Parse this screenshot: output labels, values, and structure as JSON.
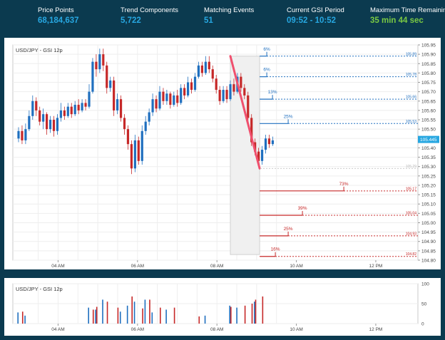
{
  "header": {
    "stats": [
      {
        "label": "Price Points",
        "value": "68,184,637"
      },
      {
        "label": "Trend Components",
        "value": "5,722"
      },
      {
        "label": "Matching Events",
        "value": "51"
      },
      {
        "label": "Current GSI Period",
        "value": "09:52 - 10:52"
      },
      {
        "label": "Maximum Time Remaining",
        "value": "35 min 44 sec"
      }
    ]
  },
  "colors": {
    "up": "#1f6fbf",
    "down": "#c62828",
    "highlight": "#f0506e",
    "accent": "#27a7e1",
    "remaining": "#7ac943"
  },
  "chart_data": [
    {
      "type": "candlestick",
      "title": "USD/JPY - GSI 12p",
      "x_ticks": [
        "04 AM",
        "06 AM",
        "08 AM",
        "10 AM",
        "12 PM"
      ],
      "ylim": [
        104.8,
        105.95
      ],
      "y_ticks": [
        "104.80",
        "104.85",
        "104.90",
        "104.95",
        "105.00",
        "105.05",
        "105.10",
        "105.15",
        "105.20",
        "105.25",
        "105.30",
        "105.35",
        "105.40",
        "105.45",
        "105.50",
        "105.55",
        "105.60",
        "105.65",
        "105.70",
        "105.75",
        "105.80",
        "105.85",
        "105.90",
        "105.95"
      ],
      "last_price": "105.445",
      "current_line": "105.29",
      "candles": [
        {
          "o": 105.45,
          "c": 105.49,
          "h": 105.51,
          "l": 105.43
        },
        {
          "o": 105.49,
          "c": 105.44,
          "h": 105.52,
          "l": 105.42
        },
        {
          "o": 105.44,
          "c": 105.5,
          "h": 105.53,
          "l": 105.42
        },
        {
          "o": 105.5,
          "c": 105.57,
          "h": 105.6,
          "l": 105.49
        },
        {
          "o": 105.57,
          "c": 105.65,
          "h": 105.68,
          "l": 105.55
        },
        {
          "o": 105.65,
          "c": 105.6,
          "h": 105.67,
          "l": 105.57
        },
        {
          "o": 105.6,
          "c": 105.54,
          "h": 105.62,
          "l": 105.52
        },
        {
          "o": 105.54,
          "c": 105.58,
          "h": 105.61,
          "l": 105.5
        },
        {
          "o": 105.58,
          "c": 105.5,
          "h": 105.59,
          "l": 105.47
        },
        {
          "o": 105.5,
          "c": 105.55,
          "h": 105.57,
          "l": 105.48
        },
        {
          "o": 105.55,
          "c": 105.49,
          "h": 105.57,
          "l": 105.46
        },
        {
          "o": 105.49,
          "c": 105.56,
          "h": 105.58,
          "l": 105.47
        },
        {
          "o": 105.56,
          "c": 105.6,
          "h": 105.64,
          "l": 105.54
        },
        {
          "o": 105.6,
          "c": 105.57,
          "h": 105.62,
          "l": 105.55
        },
        {
          "o": 105.57,
          "c": 105.62,
          "h": 105.64,
          "l": 105.56
        },
        {
          "o": 105.62,
          "c": 105.58,
          "h": 105.64,
          "l": 105.56
        },
        {
          "o": 105.58,
          "c": 105.63,
          "h": 105.65,
          "l": 105.57
        },
        {
          "o": 105.63,
          "c": 105.6,
          "h": 105.66,
          "l": 105.58
        },
        {
          "o": 105.6,
          "c": 105.64,
          "h": 105.66,
          "l": 105.59
        },
        {
          "o": 105.64,
          "c": 105.62,
          "h": 105.66,
          "l": 105.6
        },
        {
          "o": 105.62,
          "c": 105.7,
          "h": 105.74,
          "l": 105.61
        },
        {
          "o": 105.7,
          "c": 105.86,
          "h": 105.88,
          "l": 105.69
        },
        {
          "o": 105.86,
          "c": 105.82,
          "h": 105.9,
          "l": 105.78
        },
        {
          "o": 105.82,
          "c": 105.9,
          "h": 105.93,
          "l": 105.8
        },
        {
          "o": 105.9,
          "c": 105.84,
          "h": 105.93,
          "l": 105.81
        },
        {
          "o": 105.84,
          "c": 105.72,
          "h": 105.86,
          "l": 105.69
        },
        {
          "o": 105.72,
          "c": 105.76,
          "h": 105.78,
          "l": 105.7
        },
        {
          "o": 105.76,
          "c": 105.6,
          "h": 105.78,
          "l": 105.57
        },
        {
          "o": 105.6,
          "c": 105.66,
          "h": 105.69,
          "l": 105.58
        },
        {
          "o": 105.66,
          "c": 105.56,
          "h": 105.68,
          "l": 105.54
        },
        {
          "o": 105.56,
          "c": 105.5,
          "h": 105.58,
          "l": 105.47
        },
        {
          "o": 105.5,
          "c": 105.42,
          "h": 105.52,
          "l": 105.39
        },
        {
          "o": 105.42,
          "c": 105.29,
          "h": 105.44,
          "l": 105.26
        },
        {
          "o": 105.29,
          "c": 105.44,
          "h": 105.47,
          "l": 105.27
        },
        {
          "o": 105.44,
          "c": 105.33,
          "h": 105.46,
          "l": 105.31
        },
        {
          "o": 105.33,
          "c": 105.49,
          "h": 105.52,
          "l": 105.31
        },
        {
          "o": 105.49,
          "c": 105.54,
          "h": 105.57,
          "l": 105.47
        },
        {
          "o": 105.54,
          "c": 105.59,
          "h": 105.61,
          "l": 105.52
        },
        {
          "o": 105.59,
          "c": 105.66,
          "h": 105.69,
          "l": 105.57
        },
        {
          "o": 105.66,
          "c": 105.61,
          "h": 105.68,
          "l": 105.59
        },
        {
          "o": 105.61,
          "c": 105.7,
          "h": 105.73,
          "l": 105.6
        },
        {
          "o": 105.7,
          "c": 105.65,
          "h": 105.72,
          "l": 105.63
        },
        {
          "o": 105.65,
          "c": 105.69,
          "h": 105.71,
          "l": 105.63
        },
        {
          "o": 105.69,
          "c": 105.63,
          "h": 105.7,
          "l": 105.61
        },
        {
          "o": 105.63,
          "c": 105.68,
          "h": 105.7,
          "l": 105.62
        },
        {
          "o": 105.68,
          "c": 105.64,
          "h": 105.71,
          "l": 105.62
        },
        {
          "o": 105.64,
          "c": 105.72,
          "h": 105.74,
          "l": 105.63
        },
        {
          "o": 105.72,
          "c": 105.68,
          "h": 105.74,
          "l": 105.66
        },
        {
          "o": 105.68,
          "c": 105.75,
          "h": 105.78,
          "l": 105.67
        },
        {
          "o": 105.75,
          "c": 105.71,
          "h": 105.77,
          "l": 105.69
        },
        {
          "o": 105.71,
          "c": 105.78,
          "h": 105.8,
          "l": 105.7
        },
        {
          "o": 105.78,
          "c": 105.84,
          "h": 105.86,
          "l": 105.77
        },
        {
          "o": 105.84,
          "c": 105.8,
          "h": 105.86,
          "l": 105.78
        },
        {
          "o": 105.8,
          "c": 105.86,
          "h": 105.89,
          "l": 105.79
        },
        {
          "o": 105.86,
          "c": 105.82,
          "h": 105.89,
          "l": 105.8
        },
        {
          "o": 105.82,
          "c": 105.77,
          "h": 105.84,
          "l": 105.75
        },
        {
          "o": 105.77,
          "c": 105.71,
          "h": 105.79,
          "l": 105.69
        },
        {
          "o": 105.71,
          "c": 105.65,
          "h": 105.73,
          "l": 105.63
        },
        {
          "o": 105.65,
          "c": 105.71,
          "h": 105.73,
          "l": 105.64
        },
        {
          "o": 105.71,
          "c": 105.66,
          "h": 105.73,
          "l": 105.64
        },
        {
          "o": 105.66,
          "c": 105.74,
          "h": 105.76,
          "l": 105.65
        },
        {
          "o": 105.74,
          "c": 105.7,
          "h": 105.77,
          "l": 105.68
        },
        {
          "o": 105.7,
          "c": 105.78,
          "h": 105.8,
          "l": 105.69
        },
        {
          "o": 105.78,
          "c": 105.72,
          "h": 105.8,
          "l": 105.7
        },
        {
          "o": 105.72,
          "c": 105.68,
          "h": 105.74,
          "l": 105.66
        },
        {
          "o": 105.68,
          "c": 105.56,
          "h": 105.7,
          "l": 105.54
        },
        {
          "o": 105.56,
          "c": 105.43,
          "h": 105.58,
          "l": 105.41
        },
        {
          "o": 105.43,
          "c": 105.38,
          "h": 105.45,
          "l": 105.36
        },
        {
          "o": 105.38,
          "c": 105.33,
          "h": 105.4,
          "l": 105.31
        },
        {
          "o": 105.33,
          "c": 105.39,
          "h": 105.41,
          "l": 105.31
        },
        {
          "o": 105.39,
          "c": 105.45,
          "h": 105.47,
          "l": 105.37
        },
        {
          "o": 105.45,
          "c": 105.42,
          "h": 105.47,
          "l": 105.4
        },
        {
          "o": 105.42,
          "c": 105.44,
          "h": 105.46,
          "l": 105.41
        }
      ],
      "trend_line": [
        {
          "x": 60,
          "y": 105.89
        },
        {
          "x": 68.3,
          "y": 105.29
        }
      ],
      "highlight_region": [
        {
          "x": 60,
          "y": 105.89
        },
        {
          "x": 68.3,
          "y": 104.83
        }
      ],
      "projections_up": [
        {
          "label": "6%",
          "price": "105.89"
        },
        {
          "label": "6%",
          "price": "105.78"
        },
        {
          "label": "13%",
          "price": "105.66"
        },
        {
          "label": "25%",
          "price": "105.53"
        }
      ],
      "projections_down": [
        {
          "label": "73%",
          "price": "105.17"
        },
        {
          "label": "39%",
          "price": "105.04"
        },
        {
          "label": "25%",
          "price": "104.93"
        },
        {
          "label": "16%",
          "price": "104.82"
        }
      ]
    },
    {
      "type": "bar",
      "title": "USD/JPY - GSI 12p",
      "x_ticks": [
        "04 AM",
        "06 AM",
        "08 AM",
        "10 AM",
        "12 PM"
      ],
      "ylim": [
        0,
        100
      ],
      "y_ticks": [
        "0",
        "50",
        "100"
      ],
      "bars": [
        {
          "x": 0,
          "blue": 28,
          "red": 0
        },
        {
          "x": 1,
          "blue": 0,
          "red": 30
        },
        {
          "x": 2,
          "blue": 20,
          "red": 0
        },
        {
          "x": 20,
          "blue": 40,
          "red": 0
        },
        {
          "x": 21,
          "blue": 0,
          "red": 35
        },
        {
          "x": 22,
          "blue": 35,
          "red": 42
        },
        {
          "x": 24,
          "blue": 60,
          "red": 0
        },
        {
          "x": 25,
          "blue": 0,
          "red": 55
        },
        {
          "x": 28,
          "blue": 0,
          "red": 40
        },
        {
          "x": 29,
          "blue": 30,
          "red": 0
        },
        {
          "x": 31,
          "blue": 45,
          "red": 0
        },
        {
          "x": 32,
          "blue": 0,
          "red": 68
        },
        {
          "x": 33,
          "blue": 55,
          "red": 0
        },
        {
          "x": 35,
          "blue": 0,
          "red": 38
        },
        {
          "x": 36,
          "blue": 60,
          "red": 0
        },
        {
          "x": 37,
          "blue": 0,
          "red": 60
        },
        {
          "x": 38,
          "blue": 28,
          "red": 0
        },
        {
          "x": 40,
          "blue": 0,
          "red": 40
        },
        {
          "x": 42,
          "blue": 35,
          "red": 0
        },
        {
          "x": 44,
          "blue": 0,
          "red": 40
        },
        {
          "x": 51,
          "blue": 0,
          "red": 18
        },
        {
          "x": 53,
          "blue": 20,
          "red": 0
        },
        {
          "x": 60,
          "blue": 45,
          "red": 42
        },
        {
          "x": 62,
          "blue": 40,
          "red": 0
        },
        {
          "x": 64,
          "blue": 0,
          "red": 45
        },
        {
          "x": 66,
          "blue": 0,
          "red": 50
        },
        {
          "x": 67,
          "blue": 55,
          "red": 60
        },
        {
          "x": 69,
          "blue": 0,
          "red": 68
        }
      ]
    }
  ]
}
